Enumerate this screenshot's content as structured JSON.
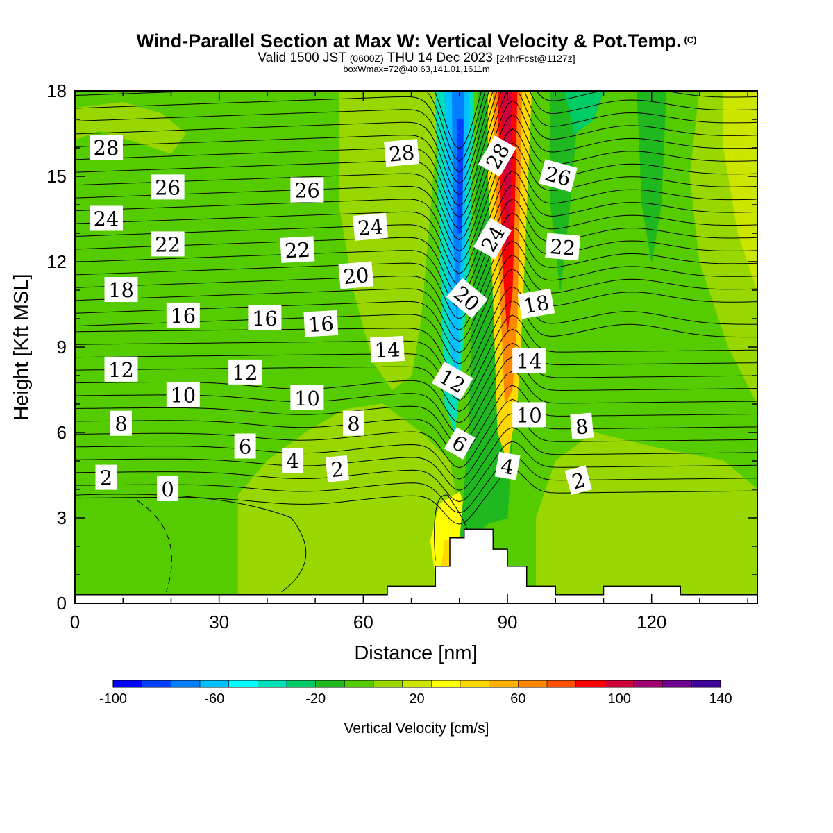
{
  "header": {
    "title": "Wind-Parallel Section at Max W: Vertical Velocity & Pot.Temp.",
    "title_mark": "(C)",
    "valid_prefix": "Valid 1500 JST",
    "valid_utc": "(0600Z)",
    "valid_date": "THU 14 Dec 2023",
    "forecast": "[24hrFcst@1127z]",
    "box_info": "boxWmax=72@40.63,141.01,1611m"
  },
  "chart_data": {
    "type": "heatmap",
    "xlabel": "Distance [nm]",
    "ylabel": "Height [Kft MSL]",
    "xlim": [
      0,
      142
    ],
    "ylim": [
      0,
      18
    ],
    "x_ticks": [
      0,
      30,
      60,
      90,
      120
    ],
    "y_ticks": [
      0,
      3,
      6,
      9,
      12,
      15,
      18
    ],
    "colorbar": {
      "label": "Vertical Velocity [cm/s]",
      "min": -100,
      "max": 140,
      "step": 10,
      "tick_values": [
        -100,
        -60,
        -20,
        20,
        60,
        100,
        140
      ],
      "colors": [
        "#0000ff",
        "#0040ff",
        "#0080ff",
        "#00c0ff",
        "#00ffff",
        "#00e0b8",
        "#00cc66",
        "#1fb81f",
        "#55cc00",
        "#99d700",
        "#cce600",
        "#ffff00",
        "#ffd800",
        "#ffb000",
        "#ff8800",
        "#ff5000",
        "#ff0000",
        "#d0003a",
        "#a00070",
        "#700090",
        "#40009a"
      ]
    },
    "field_regions": [
      {
        "color": "#55cc00",
        "name": "background",
        "points": [
          [
            0,
            0.3
          ],
          [
            142,
            0.3
          ],
          [
            142,
            18
          ],
          [
            0,
            18
          ]
        ]
      },
      {
        "color": "#99d700",
        "name": "upper-left",
        "points": [
          [
            0,
            17.4
          ],
          [
            10,
            17.6
          ],
          [
            18,
            17.2
          ],
          [
            23,
            16.5
          ],
          [
            20,
            15.8
          ],
          [
            13,
            16.2
          ],
          [
            5,
            16.6
          ],
          [
            0,
            16.3
          ]
        ]
      },
      {
        "color": "#99d700",
        "name": "upper-middle",
        "points": [
          [
            55,
            18
          ],
          [
            76,
            18
          ],
          [
            74,
            14
          ],
          [
            72,
            10
          ],
          [
            70,
            8
          ],
          [
            66,
            7.5
          ],
          [
            62,
            8.5
          ],
          [
            58,
            11
          ],
          [
            55,
            14
          ]
        ]
      },
      {
        "color": "#99d700",
        "name": "lower-band",
        "points": [
          [
            34,
            0.3
          ],
          [
            78,
            0.3
          ],
          [
            80,
            3
          ],
          [
            78,
            5
          ],
          [
            72,
            6
          ],
          [
            64,
            7
          ],
          [
            56,
            6.8
          ],
          [
            48,
            6
          ],
          [
            40,
            5
          ],
          [
            34,
            3.8
          ]
        ]
      },
      {
        "color": "#99d700",
        "name": "right-lower",
        "points": [
          [
            96,
            0.3
          ],
          [
            142,
            0.3
          ],
          [
            142,
            4
          ],
          [
            135,
            5
          ],
          [
            120,
            5.5
          ],
          [
            108,
            6
          ],
          [
            100,
            5
          ],
          [
            96,
            3
          ]
        ]
      },
      {
        "color": "#99d700",
        "name": "right-upper",
        "points": [
          [
            130,
            18
          ],
          [
            142,
            18
          ],
          [
            142,
            7
          ],
          [
            136,
            9
          ],
          [
            130,
            12
          ],
          [
            128,
            15
          ]
        ]
      },
      {
        "color": "#cce600",
        "name": "right-edge",
        "points": [
          [
            135,
            18
          ],
          [
            142,
            18
          ],
          [
            142,
            11
          ],
          [
            138,
            13
          ],
          [
            135,
            16
          ]
        ]
      },
      {
        "color": "#ffff00",
        "name": "updraft-low",
        "points": [
          [
            75,
            1
          ],
          [
            82,
            1
          ],
          [
            83,
            2.5
          ],
          [
            80,
            3.9
          ],
          [
            76,
            3.5
          ],
          [
            74,
            2.2
          ]
        ]
      },
      {
        "color": "#ffd800",
        "name": "updraft-low-core",
        "points": [
          [
            76,
            0.9
          ],
          [
            80,
            0.9
          ],
          [
            79,
            2.2
          ],
          [
            77,
            2.2
          ]
        ]
      },
      {
        "color": "#1fb81f",
        "name": "downslope-band",
        "points": [
          [
            80,
            2
          ],
          [
            86,
            2.8
          ],
          [
            90,
            3
          ],
          [
            91,
            6
          ],
          [
            89,
            12
          ],
          [
            88,
            18
          ],
          [
            84,
            18
          ],
          [
            83,
            12
          ],
          [
            82,
            6
          ]
        ]
      },
      {
        "color": "#1fb81f",
        "name": "right-streak-1",
        "points": [
          [
            99,
            18
          ],
          [
            105,
            18
          ],
          [
            103,
            14
          ],
          [
            101,
            11
          ],
          [
            99,
            14
          ]
        ]
      },
      {
        "color": "#1fb81f",
        "name": "right-streak-2",
        "points": [
          [
            117,
            18
          ],
          [
            123,
            18
          ],
          [
            122,
            14
          ],
          [
            120,
            12
          ],
          [
            118,
            14
          ]
        ]
      },
      {
        "color": "#00cc66",
        "name": "upper-green",
        "points": [
          [
            102,
            18
          ],
          [
            110,
            18
          ],
          [
            108,
            17
          ],
          [
            104,
            16.5
          ]
        ]
      },
      {
        "color": "#00e0b8",
        "name": "downdraft-outer",
        "points": [
          [
            75,
            18
          ],
          [
            83,
            18
          ],
          [
            82,
            12
          ],
          [
            80,
            7.5
          ],
          [
            79,
            6
          ],
          [
            77,
            7
          ],
          [
            76,
            12
          ]
        ]
      },
      {
        "color": "#00c0ff",
        "name": "downdraft-mid",
        "points": [
          [
            77,
            18
          ],
          [
            82,
            18
          ],
          [
            81,
            12
          ],
          [
            79.5,
            8
          ],
          [
            78,
            9
          ],
          [
            77.5,
            13
          ]
        ]
      },
      {
        "color": "#0080ff",
        "name": "downdraft-inner",
        "points": [
          [
            78.5,
            18
          ],
          [
            81,
            18
          ],
          [
            80.5,
            13
          ],
          [
            79.5,
            10
          ],
          [
            78.8,
            13
          ]
        ]
      },
      {
        "color": "#0040ff",
        "name": "downdraft-core",
        "points": [
          [
            79.5,
            17
          ],
          [
            80.8,
            17
          ],
          [
            80.5,
            13
          ],
          [
            79.7,
            13
          ]
        ]
      },
      {
        "color": "#ffd800",
        "name": "updraft-outer",
        "points": [
          [
            86,
            18
          ],
          [
            95,
            18
          ],
          [
            94,
            14
          ],
          [
            93,
            10
          ],
          [
            92,
            7
          ],
          [
            90,
            5
          ],
          [
            88,
            6
          ],
          [
            87,
            11
          ],
          [
            86,
            15
          ]
        ]
      },
      {
        "color": "#ff8800",
        "name": "updraft-orange",
        "points": [
          [
            87,
            18
          ],
          [
            93,
            18
          ],
          [
            92.5,
            14
          ],
          [
            92,
            10
          ],
          [
            91,
            7.5
          ],
          [
            89.5,
            7
          ],
          [
            88.5,
            11
          ],
          [
            87.5,
            15
          ]
        ]
      },
      {
        "color": "#ff0000",
        "name": "updraft-red",
        "points": [
          [
            88,
            18
          ],
          [
            92,
            18
          ],
          [
            91.5,
            14
          ],
          [
            91,
            11
          ],
          [
            90,
            9.5
          ],
          [
            89,
            12
          ],
          [
            88.5,
            15
          ]
        ]
      },
      {
        "color": "#d0003a",
        "name": "updraft-core",
        "points": [
          [
            88.8,
            18
          ],
          [
            91,
            18
          ],
          [
            90.6,
            14
          ],
          [
            90,
            12
          ],
          [
            89.4,
            14
          ]
        ]
      }
    ],
    "terrain": [
      [
        0,
        0
      ],
      [
        0,
        0.3
      ],
      [
        65,
        0.3
      ],
      [
        65,
        0.6
      ],
      [
        75,
        0.6
      ],
      [
        75,
        1.3
      ],
      [
        78,
        1.3
      ],
      [
        78,
        2.3
      ],
      [
        81,
        2.3
      ],
      [
        81,
        2.6
      ],
      [
        87,
        2.6
      ],
      [
        87,
        1.9
      ],
      [
        90,
        1.9
      ],
      [
        90,
        1.3
      ],
      [
        94,
        1.3
      ],
      [
        94,
        0.6
      ],
      [
        100,
        0.6
      ],
      [
        100,
        0.3
      ],
      [
        110,
        0.3
      ],
      [
        110,
        0.6
      ],
      [
        126,
        0.6
      ],
      [
        126,
        0.3
      ],
      [
        142,
        0.3
      ],
      [
        142,
        0
      ]
    ],
    "isentrope_spacing_kft": 0.45,
    "isentrope_labels": [
      {
        "text": "28",
        "x": 6.5,
        "y": 16.0,
        "angle": 0
      },
      {
        "text": "26",
        "x": 19.3,
        "y": 14.6,
        "angle": 0
      },
      {
        "text": "24",
        "x": 6.5,
        "y": 13.5,
        "angle": 0
      },
      {
        "text": "22",
        "x": 19.3,
        "y": 12.6,
        "angle": 0
      },
      {
        "text": "18",
        "x": 9.6,
        "y": 11.0,
        "angle": 0
      },
      {
        "text": "16",
        "x": 22.5,
        "y": 10.1,
        "angle": 0
      },
      {
        "text": "12",
        "x": 9.6,
        "y": 8.2,
        "angle": 0
      },
      {
        "text": "10",
        "x": 22.5,
        "y": 7.3,
        "angle": 0
      },
      {
        "text": "8",
        "x": 9.6,
        "y": 6.3,
        "angle": 0
      },
      {
        "text": "2",
        "x": 6.5,
        "y": 4.4,
        "angle": 0
      },
      {
        "text": "0",
        "x": 19.3,
        "y": 4.0,
        "angle": 0
      },
      {
        "text": "26",
        "x": 48.3,
        "y": 14.5,
        "angle": 0
      },
      {
        "text": "28",
        "x": 68.0,
        "y": 15.8,
        "angle": -5
      },
      {
        "text": "24",
        "x": 61.5,
        "y": 13.2,
        "angle": -5
      },
      {
        "text": "22",
        "x": 46.3,
        "y": 12.4,
        "angle": -3
      },
      {
        "text": "20",
        "x": 58.5,
        "y": 11.5,
        "angle": -5
      },
      {
        "text": "16",
        "x": 39.5,
        "y": 10.0,
        "angle": 0
      },
      {
        "text": "16",
        "x": 51.2,
        "y": 9.8,
        "angle": -3
      },
      {
        "text": "14",
        "x": 65.0,
        "y": 8.9,
        "angle": -3
      },
      {
        "text": "12",
        "x": 35.4,
        "y": 8.1,
        "angle": 0
      },
      {
        "text": "10",
        "x": 48.3,
        "y": 7.2,
        "angle": 0
      },
      {
        "text": "8",
        "x": 58.0,
        "y": 6.3,
        "angle": 0
      },
      {
        "text": "6",
        "x": 35.4,
        "y": 5.5,
        "angle": 0
      },
      {
        "text": "4",
        "x": 45.3,
        "y": 5.0,
        "angle": 0
      },
      {
        "text": "2",
        "x": 54.6,
        "y": 4.7,
        "angle": -5
      },
      {
        "text": "28",
        "x": 88.0,
        "y": 15.7,
        "angle": -60
      },
      {
        "text": "24",
        "x": 87.0,
        "y": 12.8,
        "angle": -60
      },
      {
        "text": "20",
        "x": 81.5,
        "y": 10.7,
        "angle": 40
      },
      {
        "text": "12",
        "x": 78.5,
        "y": 7.8,
        "angle": 30
      },
      {
        "text": "6",
        "x": 80.0,
        "y": 5.6,
        "angle": 30
      },
      {
        "text": "26",
        "x": 100.5,
        "y": 15.0,
        "angle": 15
      },
      {
        "text": "22",
        "x": 101.5,
        "y": 12.5,
        "angle": 5
      },
      {
        "text": "18",
        "x": 96.0,
        "y": 10.5,
        "angle": -10
      },
      {
        "text": "14",
        "x": 94.5,
        "y": 8.5,
        "angle": 0
      },
      {
        "text": "10",
        "x": 94.5,
        "y": 6.6,
        "angle": 0
      },
      {
        "text": "4",
        "x": 90.0,
        "y": 4.8,
        "angle": 10
      },
      {
        "text": "8",
        "x": 105.5,
        "y": 6.2,
        "angle": -5
      },
      {
        "text": "2",
        "x": 104.8,
        "y": 4.3,
        "angle": -15
      }
    ]
  }
}
